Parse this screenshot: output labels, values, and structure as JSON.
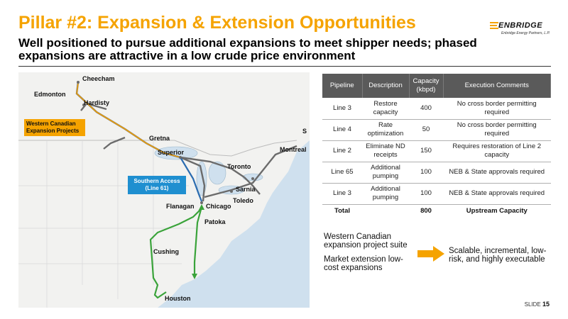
{
  "header": {
    "title": "Pillar #2: Expansion & Extension Opportunities",
    "subtitle": "Well positioned to pursue additional expansions to meet shipper needs; phased expansions are attractive in a low crude price environment"
  },
  "logo": {
    "wordmark": "ENBRIDGE",
    "sub": "Enbridge Energy Partners, L.P.",
    "icon": "enbridge-logo-icon"
  },
  "map": {
    "callouts": {
      "western": "Western Canadian Expansion Projects",
      "southern": "Southern Access (Line 61)"
    },
    "cities": {
      "cheecham": "Cheecham",
      "edmonton": "Edmonton",
      "hardisty": "Hardisty",
      "gretna": "Gretna",
      "superior": "Superior",
      "montreal": "Montreal",
      "toronto": "Toronto",
      "sarnia": "Sarnia",
      "toledo": "Toledo",
      "flanagan": "Flanagan",
      "chicago": "Chicago",
      "patoka": "Patoka",
      "cushing": "Cushing",
      "houston": "Houston",
      "edge_s": "S"
    },
    "colors": {
      "water": "#cfe0ee",
      "land": "#f2f2f0",
      "existing_line": "#6b6b6b",
      "western_expansion": "#f5a300",
      "southern_access": "#2b6cb0",
      "market_extension": "#3aa33a"
    }
  },
  "table": {
    "headers": [
      "Pipeline",
      "Description",
      "Capacity (kbpd)",
      "Execution Comments"
    ],
    "rows": [
      {
        "pipeline": "Line 3",
        "description": "Restore capacity",
        "capacity": "400",
        "comments": "No cross border permitting required"
      },
      {
        "pipeline": "Line 4",
        "description": "Rate optimization",
        "capacity": "50",
        "comments": "No cross border permitting required"
      },
      {
        "pipeline": "Line 2",
        "description": "Eliminate ND receipts",
        "capacity": "150",
        "comments": "Requires restoration of Line 2 capacity"
      },
      {
        "pipeline": "Line 65",
        "description": "Additional pumping",
        "capacity": "100",
        "comments": "NEB & State approvals required"
      },
      {
        "pipeline": "Line 3",
        "description": "Additional pumping",
        "capacity": "100",
        "comments": "NEB & State approvals required"
      }
    ],
    "total": {
      "label": "Total",
      "capacity": "800",
      "comments": "Upstream Capacity"
    },
    "header_color": "#5a5a5a"
  },
  "summary": {
    "bullets": [
      "Western Canadian expansion project suite",
      "Market extension low-cost expansions"
    ],
    "result": "Scalable, incremental, low-risk, and highly executable",
    "arrow_color": "#f5a300"
  },
  "footer": {
    "slide_label": "SLIDE",
    "slide_number": "15"
  },
  "colors": {
    "title": "#f5a300",
    "text": "#111111"
  }
}
